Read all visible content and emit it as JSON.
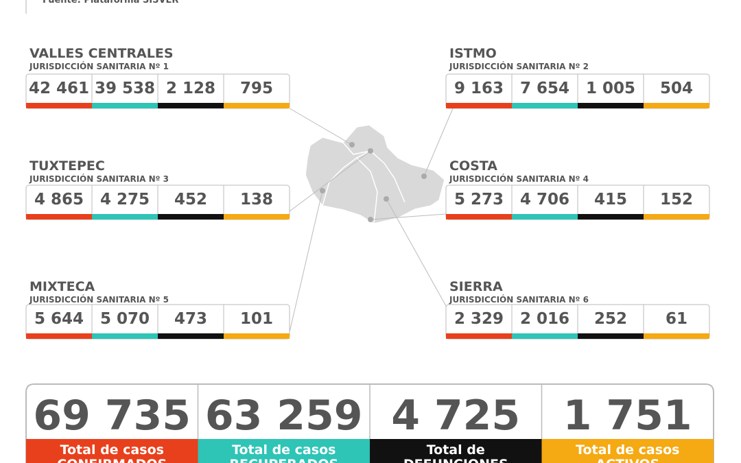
{
  "source": "Fuente: Plataforma SISVER",
  "regions": [
    {
      "name": "VALLES CENTRALES",
      "subtitle": "JURISDICCIÓN SANITARIA Nº 1",
      "values": [
        "42 461",
        "39 538",
        "2 128",
        "795"
      ]
    },
    {
      "name": "ISTMO",
      "subtitle": "JURISDICCIÓN SANITARIA Nº 2",
      "values": [
        "9 163",
        "7 654",
        "1 005",
        "504"
      ]
    },
    {
      "name": "TUXTEPEC",
      "subtitle": "JURISDICCIÓN SANITARIA Nº 3",
      "values": [
        "4 865",
        "4 275",
        "452",
        "138"
      ]
    },
    {
      "name": "COSTA",
      "subtitle": "JURISDICCIÓN SANITARIA Nº 4",
      "values": [
        "5 273",
        "4 706",
        "415",
        "152"
      ]
    },
    {
      "name": "MIXTECA",
      "subtitle": "JURISDICCIÓN SANITARIA Nº 5",
      "values": [
        "5 644",
        "5 070",
        "473",
        "101"
      ]
    },
    {
      "name": "SIERRA",
      "subtitle": "JURISDICCIÓN SANITARIA Nº 6",
      "values": [
        "2 329",
        "2 016",
        "252",
        "61"
      ]
    }
  ],
  "totals": [
    {
      "value": "69 735",
      "label": [
        "Total de casos",
        "CONFIRMADOS"
      ]
    },
    {
      "value": "63 259",
      "label": [
        "Total de casos",
        "RECUPERADOS"
      ]
    },
    {
      "value": "4 725",
      "label": [
        "Total de",
        "DEFUNCIONES"
      ]
    },
    {
      "value": "1 751",
      "label": [
        "Total de casos",
        "ACTIVOS"
      ]
    }
  ]
}
